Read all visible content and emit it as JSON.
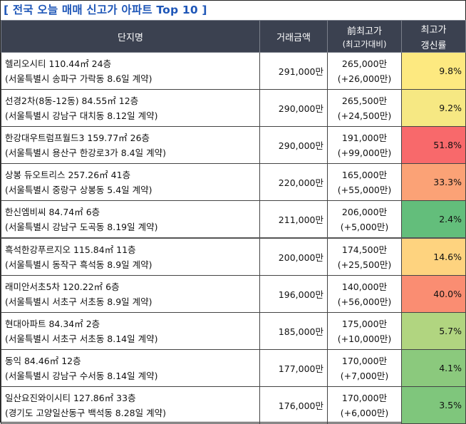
{
  "title": "[ 전국 오늘 매매 신고가 아파트 Top 10 ]",
  "headers": {
    "name": "단지명",
    "amount": "거래금액",
    "prev_line1": "前최고가",
    "prev_line2": "(최고가대비)",
    "rate_line1": "최고가",
    "rate_line2": "갱신률"
  },
  "rows": [
    {
      "name": "헬리오시티 110.44㎡ 24층",
      "loc": "(서울특별시 송파구 가락동 8.6일 계약)",
      "amount": "291,000만",
      "prev": "265,000만",
      "diff": "(+26,000만)",
      "rate": "9.8%",
      "color": "#fde980"
    },
    {
      "name": "선경2차(8동-12동) 84.55㎡ 12층",
      "loc": "(서울특별시 강남구 대치동 8.12일 계약)",
      "amount": "290,000만",
      "prev": "265,500만",
      "diff": "(+24,500만)",
      "rate": "9.2%",
      "color": "#f6e883"
    },
    {
      "name": "한강대우트럼프월드3 159.77㎡ 26층",
      "loc": "(서울특별시 용산구 한강로3가 8.4일 계약)",
      "amount": "290,000만",
      "prev": "191,000만",
      "diff": "(+99,000만)",
      "rate": "51.8%",
      "color": "#f8696b"
    },
    {
      "name": "상봉 듀오트리스 257.26㎡ 41층",
      "loc": "(서울특별시 중랑구 상봉동 5.4일 계약)",
      "amount": "220,000만",
      "prev": "165,000만",
      "diff": "(+55,000만)",
      "rate": "33.3%",
      "color": "#fba276"
    },
    {
      "name": "한신엠비씨 84.74㎡ 6층",
      "loc": "(서울특별시 강남구 도곡동 8.19일 계약)",
      "amount": "211,000만",
      "prev": "206,000만",
      "diff": "(+5,000만)",
      "rate": "2.4%",
      "color": "#63be7b"
    },
    {
      "name": "흑석한강푸르지오 115.84㎡ 11층",
      "loc": "(서울특별시 동작구 흑석동 8.9일 계약)",
      "amount": "200,000만",
      "prev": "174,500만",
      "diff": "(+25,500만)",
      "rate": "14.6%",
      "color": "#fed37f"
    },
    {
      "name": "래미안서초5차 120.22㎡ 6층",
      "loc": "(서울특별시 서초구 서초동 8.9일 계약)",
      "amount": "196,000만",
      "prev": "140,000만",
      "diff": "(+56,000만)",
      "rate": "40.0%",
      "color": "#fa8d72"
    },
    {
      "name": "현대아파트 84.34㎡ 2층",
      "loc": "(서울특별시 서초구 서초동 8.14일 계약)",
      "amount": "185,000만",
      "prev": "175,000만",
      "diff": "(+10,000만)",
      "rate": "5.7%",
      "color": "#b1d580"
    },
    {
      "name": "동익 84.46㎡ 12층",
      "loc": "(서울특별시 강남구 수서동 8.14일 계약)",
      "amount": "177,000만",
      "prev": "170,000만",
      "diff": "(+7,000만)",
      "rate": "4.1%",
      "color": "#8bc97d"
    },
    {
      "name": "일산요진와이시티 127.86㎡ 33층",
      "loc": "(경기도 고양일산동구 백석동 8.28일 계약)",
      "amount": "176,000만",
      "prev": "170,000만",
      "diff": "(+6,000만)",
      "rate": "3.5%",
      "color": "#7fc67c"
    }
  ]
}
